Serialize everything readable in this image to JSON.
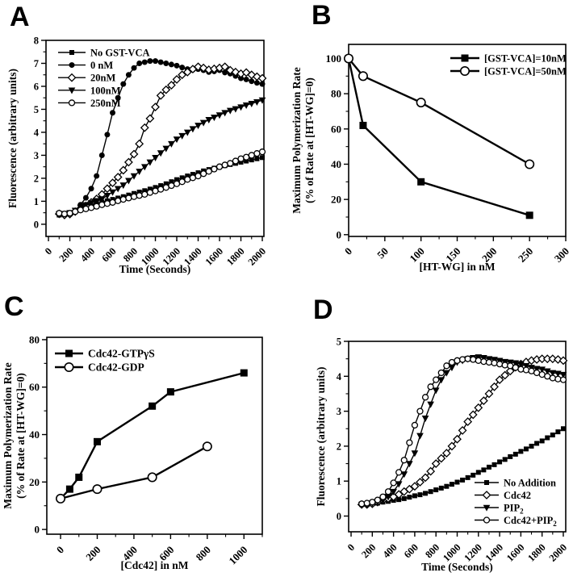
{
  "colors": {
    "ink": "#000000",
    "paper": "#ffffff"
  },
  "chart_data": [
    {
      "panel": "A",
      "type": "line",
      "xlabel": "Time (Seconds)",
      "ylabel": [
        "Fluorescence (arbitrary units)"
      ],
      "xlim": [
        -23,
        2015
      ],
      "ylim": [
        -0.53,
        8
      ],
      "xticks": [
        0,
        200,
        400,
        600,
        800,
        1000,
        1200,
        1400,
        1600,
        1800,
        2000
      ],
      "yticks": [
        0,
        1,
        2,
        3,
        4,
        5,
        6,
        7,
        8
      ],
      "x_minor": 100,
      "y_minor": 0.5,
      "legend_position": "top-left",
      "x": [
        100,
        150,
        200,
        250,
        300,
        350,
        400,
        450,
        500,
        550,
        600,
        650,
        700,
        750,
        800,
        850,
        900,
        950,
        1000,
        1050,
        1100,
        1150,
        1200,
        1250,
        1300,
        1350,
        1400,
        1450,
        1500,
        1550,
        1600,
        1650,
        1700,
        1750,
        1800,
        1850,
        1900,
        1950,
        2000
      ],
      "series": [
        {
          "name": "No GST-VCA",
          "marker": "square-filled",
          "y": [
            0.4,
            0.42,
            0.45,
            0.55,
            0.68,
            0.78,
            0.85,
            0.9,
            0.96,
            1.02,
            1.08,
            1.14,
            1.2,
            1.27,
            1.34,
            1.4,
            1.46,
            1.53,
            1.6,
            1.68,
            1.76,
            1.85,
            1.94,
            2.02,
            2.1,
            2.17,
            2.24,
            2.32,
            2.38,
            2.44,
            2.5,
            2.55,
            2.6,
            2.65,
            2.7,
            2.75,
            2.8,
            2.85,
            2.9
          ]
        },
        {
          "name": "0 nM",
          "marker": "circle-filled",
          "y": [
            0.45,
            0.42,
            0.45,
            0.6,
            0.85,
            1.15,
            1.55,
            2.1,
            3.0,
            3.9,
            4.85,
            5.5,
            6.1,
            6.5,
            6.8,
            7.0,
            7.05,
            7.1,
            7.1,
            7.05,
            7.0,
            6.95,
            6.9,
            6.82,
            6.75,
            6.72,
            6.75,
            6.7,
            6.62,
            6.65,
            6.7,
            6.6,
            6.55,
            6.45,
            6.35,
            6.3,
            6.22,
            6.15,
            6.1
          ]
        },
        {
          "name": "20nM",
          "marker": "diamond-open",
          "y": [
            0.45,
            0.4,
            0.44,
            0.55,
            0.68,
            0.8,
            0.95,
            1.1,
            1.3,
            1.55,
            1.8,
            2.05,
            2.35,
            2.7,
            3.05,
            3.5,
            4.2,
            4.6,
            5.1,
            5.6,
            5.85,
            6.05,
            6.3,
            6.5,
            6.62,
            6.75,
            6.85,
            6.8,
            6.72,
            6.76,
            6.8,
            6.85,
            6.7,
            6.62,
            6.55,
            6.6,
            6.5,
            6.42,
            6.35
          ]
        },
        {
          "name": "100nM",
          "marker": "triangle-down-filled",
          "y": [
            0.45,
            0.46,
            0.5,
            0.6,
            0.73,
            0.84,
            0.93,
            1.02,
            1.1,
            1.25,
            1.4,
            1.55,
            1.7,
            1.9,
            2.1,
            2.3,
            2.5,
            2.7,
            2.9,
            3.1,
            3.3,
            3.5,
            3.7,
            3.85,
            4.0,
            4.15,
            4.3,
            4.42,
            4.55,
            4.65,
            4.75,
            4.85,
            4.95,
            5.02,
            5.1,
            5.18,
            5.25,
            5.32,
            5.4
          ]
        },
        {
          "name": "250nM",
          "marker": "circle-open",
          "y": [
            0.48,
            0.45,
            0.48,
            0.55,
            0.62,
            0.67,
            0.72,
            0.78,
            0.85,
            0.9,
            0.95,
            1.02,
            1.08,
            1.14,
            1.2,
            1.25,
            1.3,
            1.38,
            1.45,
            1.52,
            1.6,
            1.68,
            1.76,
            1.85,
            1.95,
            2.02,
            2.1,
            2.2,
            2.3,
            2.4,
            2.5,
            2.58,
            2.65,
            2.75,
            2.85,
            2.92,
            3.0,
            3.08,
            3.15
          ]
        }
      ]
    },
    {
      "panel": "B",
      "type": "line",
      "xlabel": "[HT-WG] in nM",
      "ylabel": [
        "Maximum Polymerization Rate",
        "(% of Rate at [HT-WG]=0)"
      ],
      "xlim": [
        0,
        300
      ],
      "ylim": [
        -1,
        108
      ],
      "xticks": [
        0,
        50,
        100,
        150,
        200,
        250,
        300
      ],
      "yticks": [
        0,
        20,
        40,
        60,
        80,
        100
      ],
      "x_minor": 25,
      "y_minor": 10,
      "legend_position": "top-right",
      "series": [
        {
          "name": "[GST-VCA]=10nM",
          "marker": "square-filled",
          "x": [
            0,
            20,
            100,
            250
          ],
          "y": [
            100,
            62,
            30,
            11
          ]
        },
        {
          "name": "[GST-VCA]=50nM",
          "marker": "circle-open",
          "x": [
            0,
            20,
            100,
            250
          ],
          "y": [
            100,
            90,
            75,
            40
          ]
        }
      ]
    },
    {
      "panel": "C",
      "type": "line",
      "xlabel": "[Cdc42] in nM",
      "ylabel": [
        "Maximum Polymerization Rate",
        "(% of Rate at [HT-WG]=0)"
      ],
      "xlim": [
        -75,
        1100
      ],
      "ylim": [
        -2,
        81
      ],
      "xticks": [
        0,
        200,
        400,
        600,
        800,
        1000
      ],
      "yticks": [
        0,
        20,
        40,
        60,
        80
      ],
      "x_minor": 100,
      "y_minor": 10,
      "legend_position": "top-left",
      "series": [
        {
          "name": "Cdc42-GTPγS",
          "marker": "square-filled",
          "no_marker_first": true,
          "x": [
            0,
            50,
            100,
            200,
            500,
            600,
            1000
          ],
          "y": [
            13,
            17,
            22,
            37,
            52,
            58,
            66
          ]
        },
        {
          "name": "Cdc42-GDP",
          "marker": "circle-open",
          "x": [
            0,
            200,
            500,
            800
          ],
          "y": [
            13,
            17,
            22,
            35
          ]
        }
      ]
    },
    {
      "panel": "D",
      "type": "line",
      "xlabel": "Time (Seconds)",
      "ylabel": [
        "Fluorescence (arbitrary units)"
      ],
      "xlim": [
        -23,
        2023
      ],
      "ylim": [
        -0.45,
        5
      ],
      "xticks": [
        0,
        200,
        400,
        600,
        800,
        1000,
        1200,
        1400,
        1600,
        1800,
        2000
      ],
      "yticks": [
        0,
        1,
        2,
        3,
        4,
        5
      ],
      "x_minor": 100,
      "y_minor": 0.5,
      "legend_position": "bottom-right",
      "x": [
        100,
        150,
        200,
        250,
        300,
        350,
        400,
        450,
        500,
        550,
        600,
        650,
        700,
        750,
        800,
        850,
        900,
        950,
        1000,
        1050,
        1100,
        1150,
        1200,
        1250,
        1300,
        1350,
        1400,
        1450,
        1500,
        1550,
        1600,
        1650,
        1700,
        1750,
        1800,
        1850,
        1900,
        1950,
        2000
      ],
      "series": [
        {
          "name": "No Addition",
          "marker": "square-filled",
          "y": [
            0.33,
            0.33,
            0.35,
            0.37,
            0.4,
            0.42,
            0.45,
            0.47,
            0.5,
            0.54,
            0.58,
            0.61,
            0.65,
            0.7,
            0.75,
            0.8,
            0.85,
            0.91,
            0.97,
            1.03,
            1.1,
            1.17,
            1.25,
            1.32,
            1.4,
            1.47,
            1.55,
            1.62,
            1.7,
            1.77,
            1.85,
            1.92,
            2.0,
            2.08,
            2.15,
            2.24,
            2.32,
            2.41,
            2.5
          ]
        },
        {
          "name": "Cdc42",
          "marker": "diamond-open",
          "y": [
            0.33,
            0.33,
            0.35,
            0.4,
            0.45,
            0.5,
            0.55,
            0.62,
            0.7,
            0.77,
            0.85,
            0.97,
            1.1,
            1.28,
            1.5,
            1.65,
            1.8,
            2.0,
            2.2,
            2.45,
            2.7,
            2.9,
            3.1,
            3.3,
            3.5,
            3.7,
            3.9,
            4.03,
            4.15,
            4.26,
            4.35,
            4.41,
            4.45,
            4.48,
            4.5,
            4.5,
            4.5,
            4.48,
            4.45
          ]
        },
        {
          "name": "PIP₂",
          "marker": "triangle-down-filled",
          "y": [
            0.33,
            0.34,
            0.37,
            0.41,
            0.45,
            0.55,
            0.7,
            0.92,
            1.2,
            1.5,
            1.8,
            2.3,
            2.8,
            3.2,
            3.6,
            3.9,
            4.1,
            4.25,
            4.4,
            4.45,
            4.5,
            4.53,
            4.55,
            4.53,
            4.5,
            4.48,
            4.45,
            4.42,
            4.4,
            4.38,
            4.35,
            4.3,
            4.25,
            4.22,
            4.2,
            4.15,
            4.1,
            4.08,
            4.05
          ]
        },
        {
          "name": "Cdc42+PIP₂",
          "marker": "circle-open",
          "y": [
            0.35,
            0.37,
            0.4,
            0.46,
            0.55,
            0.7,
            0.95,
            1.25,
            1.6,
            2.1,
            2.6,
            3.0,
            3.4,
            3.7,
            3.9,
            4.1,
            4.3,
            4.4,
            4.45,
            4.48,
            4.5,
            4.48,
            4.45,
            4.42,
            4.4,
            4.38,
            4.35,
            4.32,
            4.3,
            4.25,
            4.2,
            4.18,
            4.15,
            4.1,
            4.05,
            4.0,
            3.95,
            3.92,
            3.9
          ]
        }
      ]
    }
  ]
}
